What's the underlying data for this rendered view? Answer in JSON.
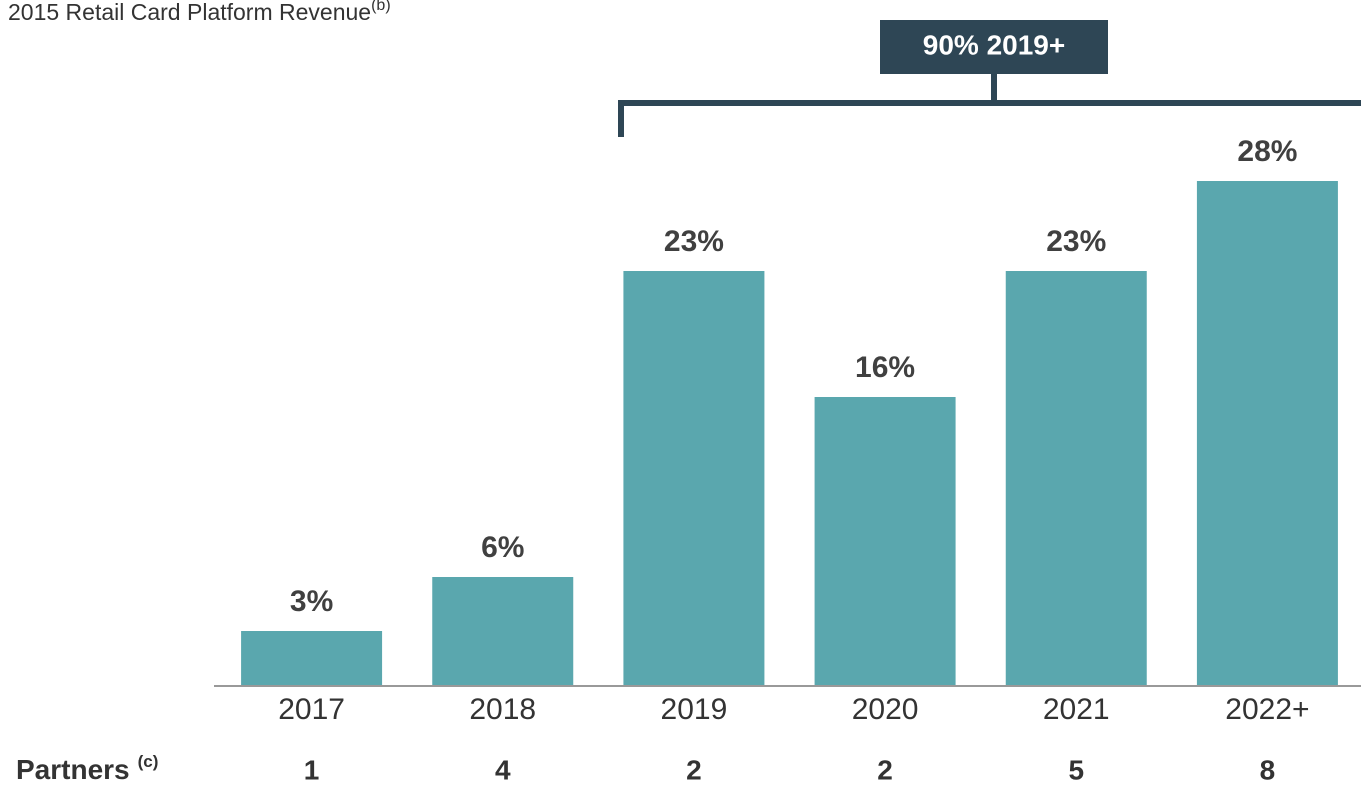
{
  "chart_data": {
    "type": "bar",
    "title": "2015 Retail Card Platform Revenue",
    "title_note": "(b)",
    "annotation": "90% 2019+",
    "categories": [
      "2017",
      "2018",
      "2019",
      "2020",
      "2021",
      "2022+"
    ],
    "values": [
      3,
      6,
      23,
      16,
      23,
      28
    ],
    "value_labels": [
      "3%",
      "6%",
      "23%",
      "16%",
      "23%",
      "28%"
    ],
    "color": "#5aa7ae",
    "ylim": [
      0,
      30
    ],
    "partners": {
      "label": "Partners",
      "note": "(c)",
      "values": [
        1,
        4,
        2,
        2,
        5,
        8
      ]
    }
  }
}
